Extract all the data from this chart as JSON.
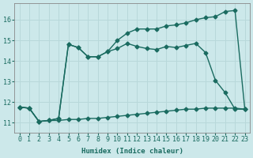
{
  "title": "",
  "xlabel": "Humidex (Indice chaleur)",
  "background_color": "#cce8ea",
  "grid_color": "#b8d8da",
  "line_color": "#1a6b60",
  "xlim": [
    -0.5,
    23.5
  ],
  "ylim": [
    10.5,
    16.8
  ],
  "xticks": [
    0,
    1,
    2,
    3,
    4,
    5,
    6,
    7,
    8,
    9,
    10,
    11,
    12,
    13,
    14,
    15,
    16,
    17,
    18,
    19,
    20,
    21,
    22,
    23
  ],
  "yticks": [
    11,
    12,
    13,
    14,
    15,
    16
  ],
  "curve1_x": [
    0,
    1,
    2,
    3,
    4,
    5,
    6,
    7,
    8,
    9,
    10,
    11,
    12,
    13,
    14,
    15,
    16,
    17,
    18,
    19,
    20,
    21,
    22,
    23
  ],
  "curve1_y": [
    11.75,
    11.7,
    11.05,
    11.1,
    11.1,
    11.15,
    11.15,
    11.2,
    11.2,
    11.25,
    11.3,
    11.35,
    11.4,
    11.45,
    11.5,
    11.55,
    11.6,
    11.65,
    11.65,
    11.7,
    11.7,
    11.7,
    11.7,
    11.65
  ],
  "curve2_x": [
    0,
    1,
    2,
    3,
    4,
    5,
    6,
    7,
    8,
    9,
    10,
    11,
    12,
    13,
    14,
    15,
    16,
    17,
    18,
    19,
    20,
    21,
    22,
    23
  ],
  "curve2_y": [
    11.75,
    11.7,
    11.05,
    11.1,
    11.2,
    14.8,
    14.65,
    14.2,
    14.2,
    14.45,
    15.0,
    15.35,
    15.55,
    15.55,
    15.55,
    15.7,
    15.75,
    15.85,
    16.0,
    16.1,
    16.15,
    16.4,
    16.45,
    11.65
  ],
  "curve3_x": [
    0,
    1,
    2,
    3,
    4,
    5,
    6,
    7,
    8,
    9,
    10,
    11,
    12,
    13,
    14,
    15,
    16,
    17,
    18,
    19,
    20,
    21,
    22,
    23
  ],
  "curve3_y": [
    11.75,
    11.7,
    11.05,
    11.1,
    11.2,
    14.8,
    14.65,
    14.2,
    14.2,
    14.45,
    14.6,
    14.85,
    14.7,
    14.6,
    14.55,
    14.7,
    14.65,
    14.75,
    14.85,
    14.4,
    13.05,
    12.45,
    11.65,
    11.65
  ],
  "marker": "D",
  "markersize": 2.5,
  "linewidth": 1.0
}
